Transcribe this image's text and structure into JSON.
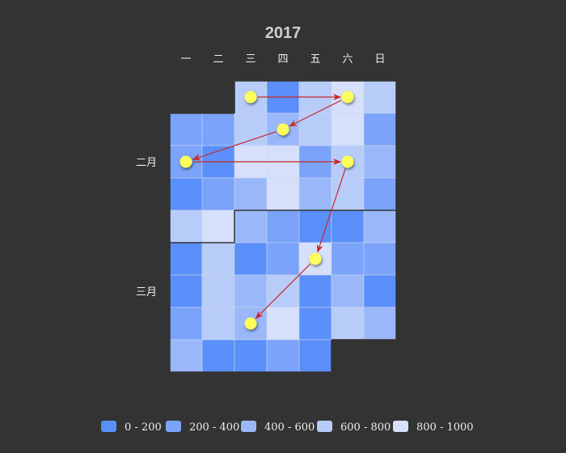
{
  "chart_data": {
    "type": "heatmap",
    "subtype": "calendar",
    "title": "2017",
    "day_labels": [
      "一",
      "二",
      "三",
      "四",
      "五",
      "六",
      "日"
    ],
    "month_labels": [
      {
        "label": "二月",
        "row": 2
      },
      {
        "label": "三月",
        "row": 6
      }
    ],
    "colors": [
      "#5b8ff9",
      "#7aa3f9",
      "#9ab8f9",
      "#b8ccfa",
      "#d6e0fb"
    ],
    "legend": [
      {
        "label": "0 - 200",
        "min": 0,
        "max": 200
      },
      {
        "label": "200 - 400",
        "min": 200,
        "max": 400
      },
      {
        "label": "400 - 600",
        "min": 400,
        "max": 600
      },
      {
        "label": "600 - 800",
        "min": 600,
        "max": 800
      },
      {
        "label": "800 - 1000",
        "min": 800,
        "max": 1000
      }
    ],
    "grid": [
      [
        null,
        null,
        3,
        0,
        3,
        4,
        3
      ],
      [
        1,
        1,
        3,
        2,
        3,
        4,
        1
      ],
      [
        1,
        0,
        4,
        4,
        1,
        3,
        2
      ],
      [
        0,
        1,
        2,
        4,
        2,
        3,
        1
      ],
      [
        3,
        4,
        2,
        1,
        0,
        0,
        2
      ],
      [
        0,
        3,
        0,
        1,
        4,
        1,
        1
      ],
      [
        0,
        3,
        2,
        3,
        0,
        2,
        0
      ],
      [
        1,
        3,
        2,
        4,
        0,
        3,
        2
      ],
      [
        2,
        0,
        0,
        1,
        0,
        null,
        null
      ]
    ],
    "month_boundary_rows": [
      4
    ],
    "path_points": [
      {
        "row": 0,
        "col": 2
      },
      {
        "row": 0,
        "col": 5
      },
      {
        "row": 1,
        "col": 3
      },
      {
        "row": 2,
        "col": 0
      },
      {
        "row": 2,
        "col": 5
      },
      {
        "row": 5,
        "col": 4
      },
      {
        "row": 7,
        "col": 2
      }
    ]
  }
}
